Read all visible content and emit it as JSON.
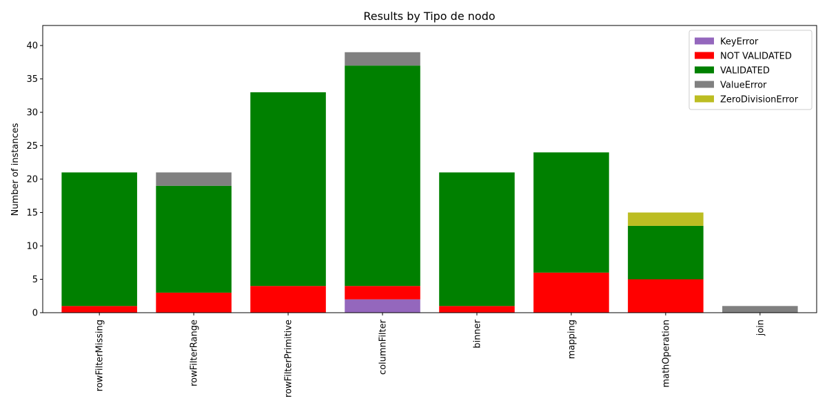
{
  "chart_data": {
    "type": "bar",
    "stacked": true,
    "title": "Results by Tipo de nodo",
    "xlabel": "",
    "ylabel": "Number of instances",
    "ylim": [
      0,
      43
    ],
    "yticks": [
      0,
      5,
      10,
      15,
      20,
      25,
      30,
      35,
      40
    ],
    "grid": false,
    "legend_position": "top-right",
    "categories": [
      "rowFilterMissing",
      "rowFilterRange",
      "rowFilterPrimitive",
      "columnFilter",
      "binner",
      "mapping",
      "mathOperation",
      "join"
    ],
    "series": [
      {
        "name": "KeyError",
        "color": "#9467bd",
        "values": [
          0,
          0,
          0,
          2,
          0,
          0,
          0,
          0
        ]
      },
      {
        "name": "NOT VALIDATED",
        "color": "#ff0000",
        "values": [
          1,
          3,
          4,
          2,
          1,
          6,
          5,
          0
        ]
      },
      {
        "name": "VALIDATED",
        "color": "#008000",
        "values": [
          20,
          16,
          29,
          33,
          20,
          18,
          8,
          0
        ]
      },
      {
        "name": "ValueError",
        "color": "#808080",
        "values": [
          0,
          2,
          0,
          2,
          0,
          0,
          0,
          1
        ]
      },
      {
        "name": "ZeroDivisionError",
        "color": "#bcbd22",
        "values": [
          0,
          0,
          0,
          0,
          0,
          0,
          2,
          0
        ]
      }
    ]
  }
}
